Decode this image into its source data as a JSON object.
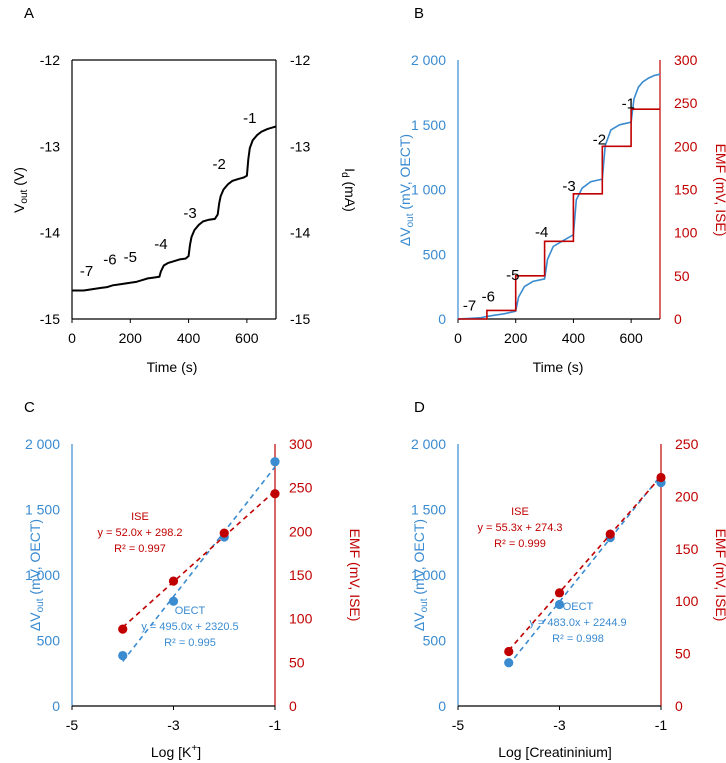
{
  "colors": {
    "black": "#000000",
    "blue": "#3a8bd0",
    "red": "#c00000"
  },
  "chart_data": [
    {
      "panel": "A",
      "type": "line",
      "xlabel": "Time (s)",
      "ylabel_main": "V",
      "ylabel_sub": "out",
      "ylabel_unit": " (V)",
      "y2label_main": "I",
      "y2label_sub": "d",
      "y2label_unit": " (mA)",
      "xlim": [
        0,
        700
      ],
      "ylim": [
        -15,
        -12
      ],
      "xticks": [
        "0",
        "200",
        "400",
        "600"
      ],
      "yticks": [
        "-12",
        "-13",
        "-14",
        "-15"
      ],
      "y2ticks": [
        "-12",
        "-13",
        "-14",
        "-15"
      ],
      "series": [
        {
          "name": "Vout",
          "color": "black",
          "x": [
            0,
            20,
            40,
            60,
            80,
            100,
            120,
            140,
            160,
            180,
            200,
            220,
            240,
            260,
            280,
            300,
            305,
            315,
            330,
            350,
            370,
            390,
            400,
            405,
            410,
            420,
            435,
            450,
            470,
            490,
            500,
            505,
            510,
            520,
            535,
            550,
            570,
            590,
            600,
            605,
            610,
            620,
            635,
            650,
            670,
            690,
            700
          ],
          "y": [
            -14.67,
            -14.67,
            -14.67,
            -14.66,
            -14.65,
            -14.64,
            -14.63,
            -14.61,
            -14.6,
            -14.59,
            -14.58,
            -14.57,
            -14.55,
            -14.53,
            -14.52,
            -14.51,
            -14.45,
            -14.38,
            -14.35,
            -14.33,
            -14.31,
            -14.3,
            -14.27,
            -14.14,
            -14.05,
            -13.97,
            -13.91,
            -13.87,
            -13.85,
            -13.84,
            -13.79,
            -13.66,
            -13.58,
            -13.5,
            -13.44,
            -13.4,
            -13.38,
            -13.36,
            -13.34,
            -13.15,
            -13.02,
            -12.93,
            -12.87,
            -12.83,
            -12.8,
            -12.78,
            -12.77
          ]
        }
      ],
      "annotations": [
        {
          "text": "-7",
          "x": 50,
          "y": -14.5
        },
        {
          "text": "-6",
          "x": 130,
          "y": -14.37
        },
        {
          "text": "-5",
          "x": 200,
          "y": -14.34
        },
        {
          "text": "-4",
          "x": 305,
          "y": -14.19
        },
        {
          "text": "-3",
          "x": 405,
          "y": -13.83
        },
        {
          "text": "-2",
          "x": 505,
          "y": -13.26
        },
        {
          "text": "-1",
          "x": 610,
          "y": -12.73
        }
      ]
    },
    {
      "panel": "B",
      "type": "line",
      "xlabel": "Time (s)",
      "ylabel_main": "ΔV",
      "ylabel_sub": "out",
      "ylabel_unit": " (mV, OECT)",
      "y2label_main": "EMF (mV, ISE)",
      "y2label_sub": "",
      "y2label_unit": "",
      "xlim": [
        0,
        700
      ],
      "ylim": [
        0,
        2000
      ],
      "y2lim": [
        0,
        300
      ],
      "xticks": [
        "0",
        "200",
        "400",
        "600"
      ],
      "yticks": [
        "2 000",
        "1 500",
        "1 000",
        "500",
        "0"
      ],
      "y2ticks": [
        "300",
        "250",
        "200",
        "150",
        "100",
        "50",
        "0"
      ],
      "series": [
        {
          "name": "OECT",
          "color": "blue",
          "axis": "left",
          "x": [
            0,
            40,
            80,
            100,
            130,
            160,
            200,
            210,
            230,
            260,
            300,
            310,
            330,
            360,
            400,
            410,
            430,
            460,
            500,
            510,
            530,
            560,
            600,
            610,
            625,
            640,
            660,
            680,
            700
          ],
          "y": [
            0,
            5,
            10,
            20,
            30,
            40,
            60,
            170,
            250,
            290,
            310,
            460,
            560,
            600,
            650,
            920,
            1010,
            1060,
            1080,
            1340,
            1460,
            1500,
            1520,
            1700,
            1790,
            1830,
            1860,
            1880,
            1890
          ]
        },
        {
          "name": "ISE",
          "color": "red",
          "axis": "right",
          "x": [
            0,
            100,
            100,
            200,
            200,
            300,
            300,
            400,
            400,
            500,
            500,
            600,
            600,
            700
          ],
          "y": [
            0,
            0,
            10,
            10,
            50,
            50,
            90,
            90,
            145,
            145,
            200,
            200,
            243,
            243
          ]
        }
      ],
      "annotations": [
        {
          "text": "-7",
          "x": 40,
          "y": 10
        },
        {
          "text": "-6",
          "x": 105,
          "y": 20
        },
        {
          "text": "-5",
          "x": 190,
          "y": 45
        },
        {
          "text": "-4",
          "x": 290,
          "y": 95
        },
        {
          "text": "-3",
          "x": 385,
          "y": 148
        },
        {
          "text": "-2",
          "x": 490,
          "y": 202
        },
        {
          "text": "-1",
          "x": 590,
          "y": 244
        }
      ]
    },
    {
      "panel": "C",
      "type": "scatter",
      "xlabel": "Log [K",
      "xlabel_sup": "+",
      "xlabel_end": "]",
      "ylabel_main": "ΔV",
      "ylabel_sub": "out",
      "ylabel_unit": " (mV, OECT)",
      "y2label_main": "EMF (mV, ISE)",
      "y2label_sub": "",
      "y2label_unit": "",
      "xlim": [
        -5,
        -1
      ],
      "ylim": [
        0,
        2000
      ],
      "y2lim": [
        0,
        300
      ],
      "xticks": [
        "-5",
        "-3",
        "-1"
      ],
      "yticks": [
        "2 000",
        "1 500",
        "1 000",
        "500",
        "0"
      ],
      "y2ticks": [
        "300",
        "250",
        "200",
        "150",
        "100",
        "50",
        "0"
      ],
      "series": [
        {
          "name": "OECT",
          "color": "blue",
          "axis": "left",
          "x": [
            -4,
            -3,
            -2,
            -1
          ],
          "y": [
            385,
            800,
            1290,
            1865
          ],
          "fit": {
            "slope": 495.0,
            "intercept": 2320.5,
            "x": [
              -4,
              -1
            ]
          },
          "eq": "y = 495.0x + 2320.5",
          "r2": "R² = 0.995",
          "label": "OECT"
        },
        {
          "name": "ISE",
          "color": "red",
          "axis": "right",
          "x": [
            -4,
            -3,
            -2,
            -1
          ],
          "y": [
            88,
            143,
            198,
            243
          ],
          "fit": {
            "slope": 52.0,
            "intercept": 298.2,
            "x": [
              -4,
              -1
            ]
          },
          "eq": "y = 52.0x + 298.2",
          "r2": "R² = 0.997",
          "label": "ISE"
        }
      ]
    },
    {
      "panel": "D",
      "type": "scatter",
      "xlabel": "Log [Creatininium]",
      "xlabel_sup": "",
      "xlabel_end": "",
      "ylabel_main": "ΔV",
      "ylabel_sub": "out",
      "ylabel_unit": " (mV, OECT)",
      "y2label_main": "EMF (mV, ISE)",
      "y2label_sub": "",
      "y2label_unit": "",
      "xlim": [
        -5,
        -1
      ],
      "ylim": [
        0,
        2000
      ],
      "y2lim": [
        0,
        250
      ],
      "xticks": [
        "-5",
        "-3",
        "-1"
      ],
      "yticks": [
        "2 000",
        "1 500",
        "1 000",
        "500",
        "0"
      ],
      "y2ticks": [
        "250",
        "200",
        "150",
        "100",
        "50",
        "0"
      ],
      "series": [
        {
          "name": "OECT",
          "color": "blue",
          "axis": "left",
          "x": [
            -4,
            -3,
            -2,
            -1
          ],
          "y": [
            330,
            775,
            1285,
            1705
          ],
          "fit": {
            "slope": 483.0,
            "intercept": 2244.9,
            "x": [
              -4,
              -1
            ]
          },
          "eq": "y = 483.0x + 2244.9",
          "r2": "R² = 0.998",
          "label": "OECT"
        },
        {
          "name": "ISE",
          "color": "red",
          "axis": "right",
          "x": [
            -4,
            -3,
            -2,
            -1
          ],
          "y": [
            52,
            108,
            164,
            218
          ],
          "fit": {
            "slope": 55.3,
            "intercept": 274.3,
            "x": [
              -4,
              -1
            ]
          },
          "eq": "y = 55.3x + 274.3",
          "r2": "R² = 0.999",
          "label": "ISE"
        }
      ]
    }
  ]
}
